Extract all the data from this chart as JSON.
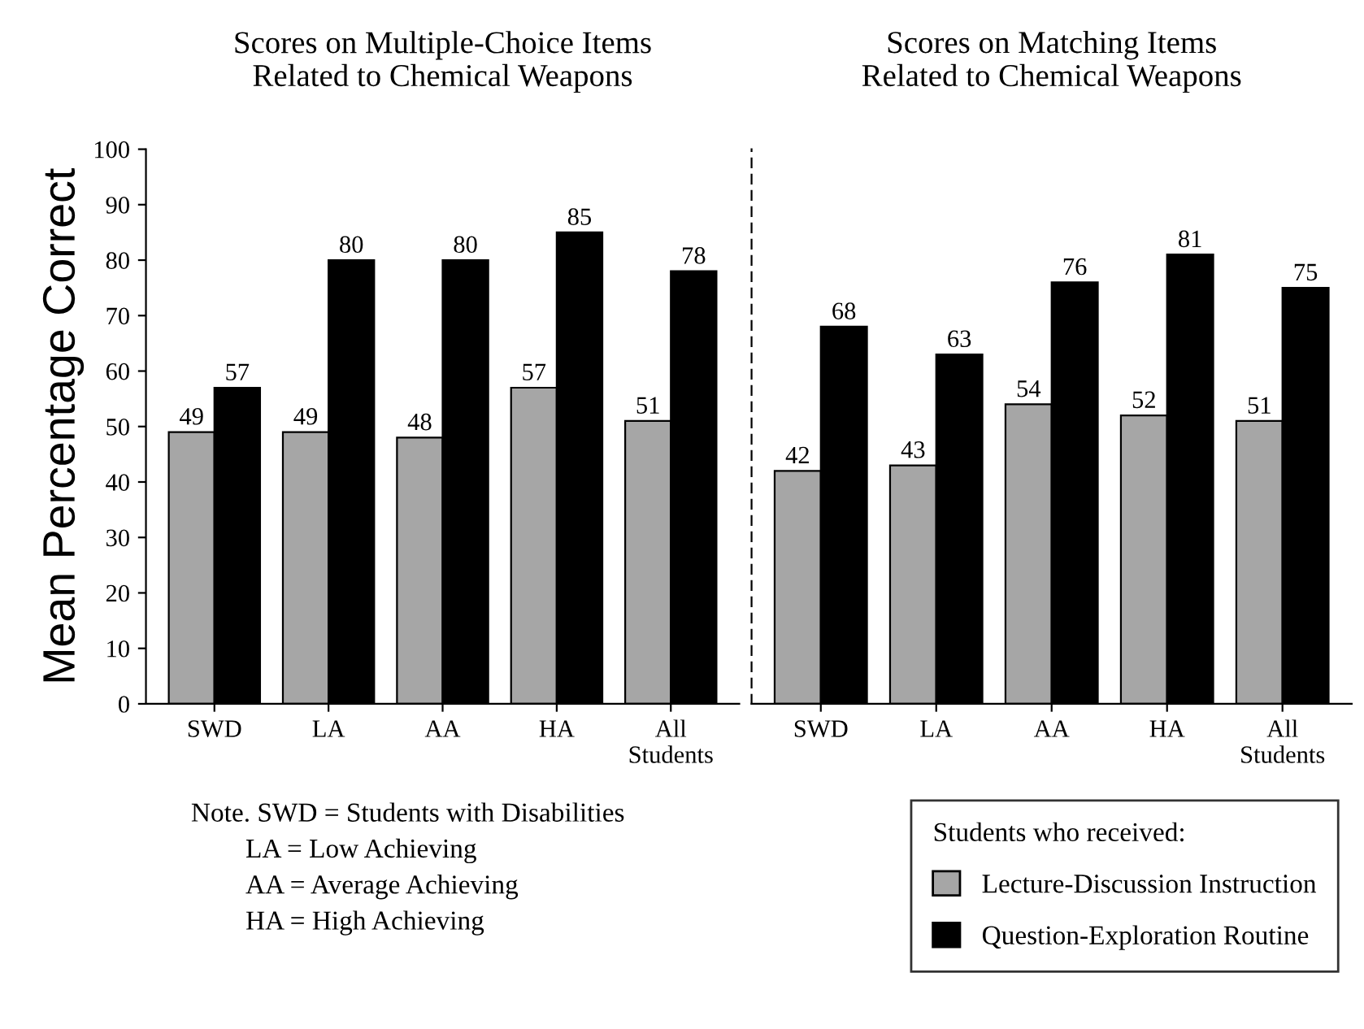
{
  "chart_data": [
    {
      "type": "bar",
      "title": "Scores on Multiple-Choice Items\nRelated to Chemical Weapons",
      "ylabel": "Mean Percentage Correct",
      "categories": [
        "SWD",
        "LA",
        "AA",
        "HA",
        "All Students"
      ],
      "series": [
        {
          "color": "#a6a6a6",
          "values": [
            49,
            49,
            48,
            57,
            51
          ]
        },
        {
          "color": "#000000",
          "values": [
            57,
            80,
            80,
            85,
            78
          ]
        }
      ],
      "ylim": [
        0,
        100
      ],
      "yticks": [
        0,
        10,
        20,
        30,
        40,
        50,
        60,
        70,
        80,
        90,
        100
      ],
      "data_labels": true,
      "grid": false,
      "annotations": [
        "Note. SWD = Students with Disabilities",
        "LA = Low Achieving",
        "AA = Average Achieving",
        "HA = High Achieving"
      ]
    },
    {
      "type": "bar",
      "title": "Scores on Matching Items\nRelated to Chemical Weapons",
      "categories": [
        "SWD",
        "LA",
        "AA",
        "HA",
        "All Students"
      ],
      "series": [
        {
          "name": "Lecture-Discussion Instruction",
          "color": "#a6a6a6",
          "values": [
            42,
            43,
            54,
            52,
            51
          ]
        },
        {
          "name": "Question-Exploration Routine",
          "color": "#000000",
          "values": [
            68,
            63,
            76,
            81,
            75
          ]
        }
      ],
      "ylim": [
        0,
        100
      ],
      "tick_labels": "x",
      "data_labels": true,
      "grid": false,
      "legend": "bottom right",
      "legend_title": "Students who received:"
    }
  ]
}
